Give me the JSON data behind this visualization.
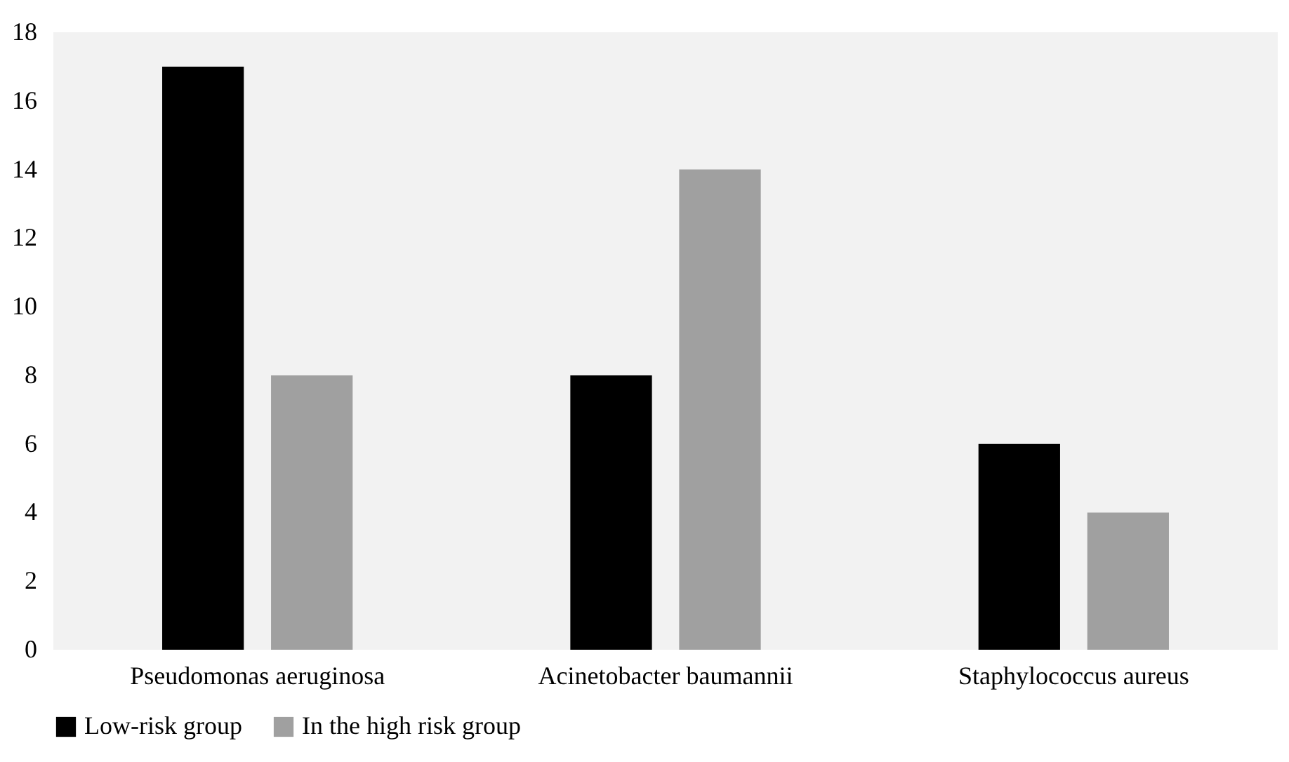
{
  "chart_data": {
    "type": "bar",
    "categories": [
      "Pseudomonas aeruginosa",
      "Acinetobacter baumannii",
      "Staphylococcus aureus"
    ],
    "series": [
      {
        "name": "Low-risk group",
        "color": "#000000",
        "values": [
          17,
          8,
          6
        ]
      },
      {
        "name": "In the high risk group",
        "color": "#a0a0a0",
        "values": [
          8,
          14,
          4
        ]
      }
    ],
    "ylim": [
      0,
      18
    ],
    "yticks": [
      0,
      2,
      4,
      6,
      8,
      10,
      12,
      14,
      16,
      18
    ],
    "legend": "bottom"
  }
}
